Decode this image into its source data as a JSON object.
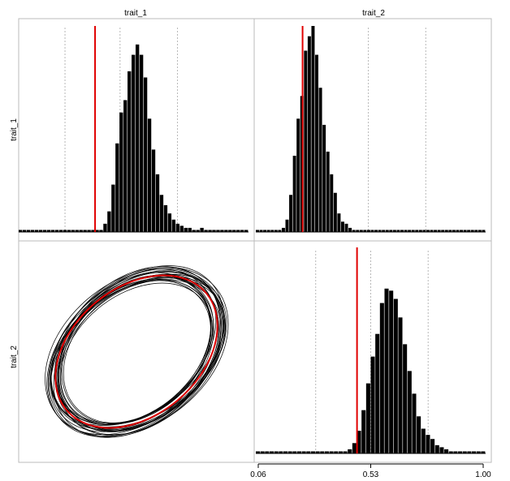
{
  "chart_data": {
    "type": "pairs",
    "variables": [
      "trait_1",
      "trait_2"
    ],
    "column_labels": [
      "trait_1",
      "trait_2"
    ],
    "row_labels": [
      "trait_1",
      "trait_2"
    ],
    "shared_x_ticks": [
      "0.06",
      "0.53",
      "1.00"
    ],
    "shared_x_tick_values": [
      0.06,
      0.53,
      1.0
    ],
    "vertical_guides": [
      0.3,
      0.53,
      0.77
    ],
    "panels": [
      {
        "name": "hist-trait_1",
        "type": "histogram",
        "variable": "trait_1",
        "bin_start": 0.0,
        "bin_width": 0.0218,
        "counts": [
          0.01,
          0.01,
          0.01,
          0.01,
          0.01,
          0.01,
          0.01,
          0.01,
          0.01,
          0.01,
          0.01,
          0.01,
          0.01,
          0.01,
          0.01,
          0.01,
          0.01,
          0.01,
          0.01,
          0.01,
          0.01,
          0.04,
          0.1,
          0.23,
          0.43,
          0.58,
          0.64,
          0.78,
          0.86,
          0.91,
          0.86,
          0.75,
          0.55,
          0.4,
          0.28,
          0.18,
          0.13,
          0.09,
          0.06,
          0.04,
          0.03,
          0.02,
          0.02,
          0.01,
          0.01,
          0.02,
          0.01,
          0.01,
          0.01,
          0.01,
          0.01,
          0.01,
          0.01,
          0.01,
          0.01,
          0.01,
          0.01
        ],
        "marker": 0.413,
        "ylim": [
          0,
          1
        ]
      },
      {
        "name": "hist-trait_2",
        "type": "histogram",
        "variable": "trait_2",
        "bin_start": 0.0,
        "bin_width": 0.0218,
        "counts": [
          0.01,
          0.01,
          0.01,
          0.01,
          0.01,
          0.01,
          0.01,
          0.02,
          0.06,
          0.18,
          0.37,
          0.55,
          0.66,
          0.88,
          0.95,
          1.0,
          0.86,
          0.7,
          0.52,
          0.39,
          0.28,
          0.19,
          0.09,
          0.05,
          0.04,
          0.02,
          0.01,
          0.01,
          0.01,
          0.01,
          0.01,
          0.01,
          0.01,
          0.01,
          0.01,
          0.01,
          0.01,
          0.01,
          0.01,
          0.01,
          0.01,
          0.01,
          0.01,
          0.01,
          0.01,
          0.01,
          0.01,
          0.01,
          0.01,
          0.01,
          0.01,
          0.01,
          0.01,
          0.01,
          0.01,
          0.01,
          0.01,
          0.01,
          0.01,
          0.01,
          0.01,
          0.01
        ],
        "marker": 0.275,
        "ylim": [
          0,
          1
        ]
      },
      {
        "name": "hist-trait_2-diag",
        "type": "histogram",
        "variable": "trait_2",
        "bin_start": 0.06,
        "bin_width": 0.0218,
        "counts": [
          0.01,
          0.01,
          0.01,
          0.01,
          0.01,
          0.01,
          0.01,
          0.01,
          0.01,
          0.01,
          0.01,
          0.01,
          0.01,
          0.01,
          0.01,
          0.01,
          0.01,
          0.01,
          0.01,
          0.01,
          0.02,
          0.05,
          0.11,
          0.21,
          0.34,
          0.47,
          0.58,
          0.73,
          0.8,
          0.79,
          0.75,
          0.66,
          0.53,
          0.4,
          0.29,
          0.18,
          0.12,
          0.09,
          0.07,
          0.04,
          0.03,
          0.02,
          0.01,
          0.01,
          0.01,
          0.01,
          0.01,
          0.01,
          0.01,
          0.01
        ],
        "marker": 0.48,
        "ylim": [
          0,
          1
        ]
      },
      {
        "name": "ellipses-trait_2-vs-trait_1",
        "type": "ellipse",
        "note": "posterior covariance ellipses with posterior mean ellipse",
        "mean_ellipse": {
          "cx": 0.5,
          "cy": 0.5,
          "rx": 0.43,
          "ry": 0.4,
          "rot_deg": -40
        },
        "sample_ellipses": [
          {
            "rx": 0.45,
            "ry": 0.43,
            "rot_deg": -38,
            "dx": 0.004,
            "dy": -0.003
          },
          {
            "rx": 0.42,
            "ry": 0.4,
            "rot_deg": -42,
            "dx": -0.006,
            "dy": 0.005
          },
          {
            "rx": 0.46,
            "ry": 0.41,
            "rot_deg": -36,
            "dx": 0.01,
            "dy": 0.002
          },
          {
            "rx": 0.41,
            "ry": 0.38,
            "rot_deg": -44,
            "dx": -0.004,
            "dy": -0.006
          },
          {
            "rx": 0.47,
            "ry": 0.44,
            "rot_deg": -41,
            "dx": 0.002,
            "dy": 0.006
          },
          {
            "rx": 0.44,
            "ry": 0.39,
            "rot_deg": -35,
            "dx": -0.01,
            "dy": 0.0
          },
          {
            "rx": 0.43,
            "ry": 0.42,
            "rot_deg": -47,
            "dx": 0.006,
            "dy": -0.008
          },
          {
            "rx": 0.4,
            "ry": 0.37,
            "rot_deg": -39,
            "dx": 0.0,
            "dy": 0.008
          },
          {
            "rx": 0.48,
            "ry": 0.43,
            "rot_deg": -43,
            "dx": -0.002,
            "dy": -0.002
          },
          {
            "rx": 0.45,
            "ry": 0.4,
            "rot_deg": -33,
            "dx": 0.008,
            "dy": 0.004
          },
          {
            "rx": 0.42,
            "ry": 0.41,
            "rot_deg": -49,
            "dx": -0.008,
            "dy": 0.003
          },
          {
            "rx": 0.44,
            "ry": 0.42,
            "rot_deg": -40,
            "dx": 0.012,
            "dy": -0.004
          },
          {
            "rx": 0.41,
            "ry": 0.39,
            "rot_deg": -37,
            "dx": -0.012,
            "dy": -0.002
          },
          {
            "rx": 0.46,
            "ry": 0.42,
            "rot_deg": -45,
            "dx": 0.004,
            "dy": 0.01
          },
          {
            "rx": 0.43,
            "ry": 0.38,
            "rot_deg": -41,
            "dx": 0.0,
            "dy": -0.01
          },
          {
            "rx": 0.47,
            "ry": 0.42,
            "rot_deg": -39,
            "dx": -0.006,
            "dy": 0.007
          },
          {
            "rx": 0.39,
            "ry": 0.38,
            "rot_deg": -42,
            "dx": 0.003,
            "dy": 0.001
          },
          {
            "rx": 0.45,
            "ry": 0.44,
            "rot_deg": -46,
            "dx": 0.007,
            "dy": -0.005
          },
          {
            "rx": 0.44,
            "ry": 0.4,
            "rot_deg": -34,
            "dx": -0.003,
            "dy": 0.009
          },
          {
            "rx": 0.42,
            "ry": 0.39,
            "rot_deg": -40,
            "dx": -0.009,
            "dy": -0.007
          },
          {
            "rx": 0.48,
            "ry": 0.45,
            "rot_deg": -38,
            "dx": 0.001,
            "dy": 0.0
          },
          {
            "rx": 0.43,
            "ry": 0.41,
            "rot_deg": -43,
            "dx": 0.009,
            "dy": 0.006
          },
          {
            "rx": 0.4,
            "ry": 0.39,
            "rot_deg": -45,
            "dx": -0.001,
            "dy": -0.009
          },
          {
            "rx": 0.46,
            "ry": 0.4,
            "rot_deg": -37,
            "dx": 0.005,
            "dy": 0.011
          },
          {
            "rx": 0.41,
            "ry": 0.37,
            "rot_deg": -41,
            "dx": -0.007,
            "dy": 0.004
          },
          {
            "rx": 0.45,
            "ry": 0.42,
            "rot_deg": -48,
            "dx": 0.011,
            "dy": -0.001
          }
        ]
      }
    ],
    "colors": {
      "bars": "#000000",
      "marker": "#e00000",
      "guides": "#b8b8b8",
      "frame": "#bbbbbb",
      "ellipse": "#000000"
    }
  }
}
